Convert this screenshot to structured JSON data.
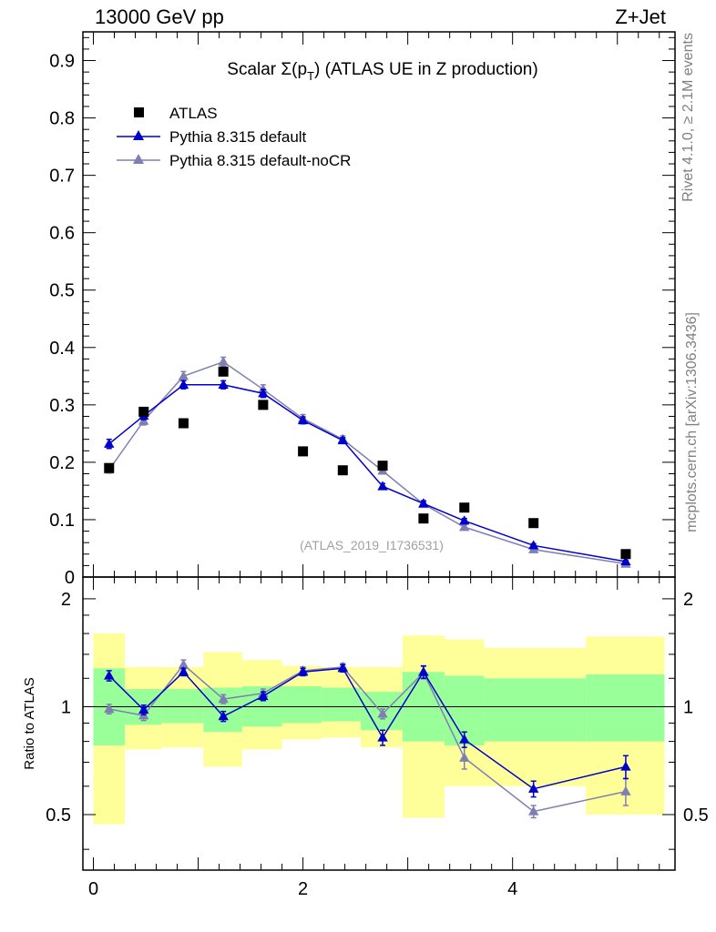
{
  "header": {
    "left": "13000 GeV pp",
    "right": "Z+Jet"
  },
  "side_labels": {
    "rivet": "Rivet 4.1.0, ≥ 2.1M events",
    "mcplots": "mcplots.cern.ch [arXiv:1306.3436]"
  },
  "chart_data": {
    "type": "scatter",
    "title": "Scalar Σ(p_T) (ATLAS UE in Z production)",
    "title_parts": {
      "pre": "Scalar Σ(p",
      "sub": "T",
      "post": ") (ATLAS UE in Z production)"
    },
    "reference": "(ATLAS_2019_I1736531)",
    "xlim": [
      -0.1,
      5.55
    ],
    "ylim": [
      0,
      0.95
    ],
    "ratio_ylim": [
      0.35,
      2.3
    ],
    "ratio_ylabel": "Ratio to ATLAS",
    "x_ticks": [
      0,
      2,
      4
    ],
    "x_tick_labels": [
      "0",
      "2",
      "4"
    ],
    "y_ticks": [
      0.1,
      0.2,
      0.3,
      0.4,
      0.5,
      0.6,
      0.7,
      0.8,
      0.9
    ],
    "y_tick_labels": [
      "0.1",
      "0.2",
      "0.3",
      "0.4",
      "0.5",
      "0.6",
      "0.7",
      "0.8",
      "0.9"
    ],
    "y_zero_label": "0",
    "ratio_ticks": [
      0.5,
      1,
      2
    ],
    "ratio_tick_labels": [
      "0.5",
      "1",
      "2"
    ],
    "bins": [
      [
        0.0,
        0.3
      ],
      [
        0.3,
        0.65
      ],
      [
        0.65,
        1.05
      ],
      [
        1.05,
        1.42
      ],
      [
        1.42,
        1.8
      ],
      [
        1.8,
        2.18
      ],
      [
        2.18,
        2.55
      ],
      [
        2.55,
        2.95
      ],
      [
        2.95,
        3.35
      ],
      [
        3.35,
        3.73
      ],
      [
        3.73,
        4.7
      ],
      [
        4.7,
        5.45
      ]
    ],
    "x": [
      0.15,
      0.48,
      0.86,
      1.24,
      1.62,
      2.0,
      2.38,
      2.76,
      3.15,
      3.54,
      4.2,
      5.08
    ],
    "legend": [
      "ATLAS",
      "Pythia 8.315 default",
      "Pythia 8.315 default-noCR"
    ],
    "series": [
      {
        "name": "ATLAS",
        "marker": "square",
        "color": "#000000",
        "values": [
          0.19,
          0.288,
          0.268,
          0.358,
          0.3,
          0.219,
          0.186,
          0.194,
          0.102,
          0.121,
          0.094,
          0.04
        ]
      },
      {
        "name": "Pythia 8.315 default",
        "marker": "triangle",
        "color": "#0000cc",
        "values": [
          0.232,
          0.281,
          0.335,
          0.335,
          0.32,
          0.273,
          0.238,
          0.158,
          0.128,
          0.098,
          0.055,
          0.027
        ],
        "errors": [
          0.008,
          0.007,
          0.007,
          0.007,
          0.007,
          0.006,
          0.005,
          0.005,
          0.005,
          0.004,
          0.003,
          0.002
        ]
      },
      {
        "name": "Pythia 8.315 default-noCR",
        "marker": "triangle",
        "color": "#7f7fb4",
        "values": [
          0.187,
          0.272,
          0.35,
          0.375,
          0.327,
          0.276,
          0.24,
          0.185,
          0.127,
          0.087,
          0.048,
          0.023
        ],
        "errors": [
          0.006,
          0.007,
          0.008,
          0.008,
          0.008,
          0.007,
          0.006,
          0.005,
          0.005,
          0.004,
          0.003,
          0.002
        ]
      }
    ],
    "ratio_series": [
      {
        "name": "Pythia 8.315 default",
        "values": [
          1.22,
          0.98,
          1.25,
          0.94,
          1.07,
          1.25,
          1.28,
          0.82,
          1.25,
          0.81,
          0.59,
          0.68
        ],
        "errors": [
          0.04,
          0.03,
          0.03,
          0.03,
          0.03,
          0.03,
          0.03,
          0.04,
          0.05,
          0.04,
          0.03,
          0.05
        ]
      },
      {
        "name": "Pythia 8.315 default-noCR",
        "values": [
          0.985,
          0.945,
          1.31,
          1.05,
          1.09,
          1.26,
          1.29,
          0.955,
          1.245,
          0.72,
          0.51,
          0.58
        ],
        "errors": [
          0.03,
          0.03,
          0.04,
          0.03,
          0.03,
          0.03,
          0.03,
          0.03,
          0.05,
          0.05,
          0.02,
          0.05
        ]
      }
    ],
    "bands": {
      "green": [
        [
          0.78,
          1.28
        ],
        [
          0.89,
          1.12
        ],
        [
          0.9,
          1.12
        ],
        [
          0.85,
          1.13
        ],
        [
          0.88,
          1.14
        ],
        [
          0.9,
          1.14
        ],
        [
          0.91,
          1.13
        ],
        [
          0.86,
          1.1
        ],
        [
          0.8,
          1.25
        ],
        [
          0.78,
          1.22
        ],
        [
          0.8,
          1.2
        ],
        [
          0.8,
          1.23
        ]
      ],
      "yellow": [
        [
          0.47,
          1.6
        ],
        [
          0.76,
          1.29
        ],
        [
          0.77,
          1.29
        ],
        [
          0.68,
          1.42
        ],
        [
          0.76,
          1.35
        ],
        [
          0.81,
          1.3
        ],
        [
          0.82,
          1.29
        ],
        [
          0.77,
          1.29
        ],
        [
          0.49,
          1.58
        ],
        [
          0.6,
          1.54
        ],
        [
          0.6,
          1.46
        ],
        [
          0.5,
          1.57
        ]
      ]
    }
  }
}
